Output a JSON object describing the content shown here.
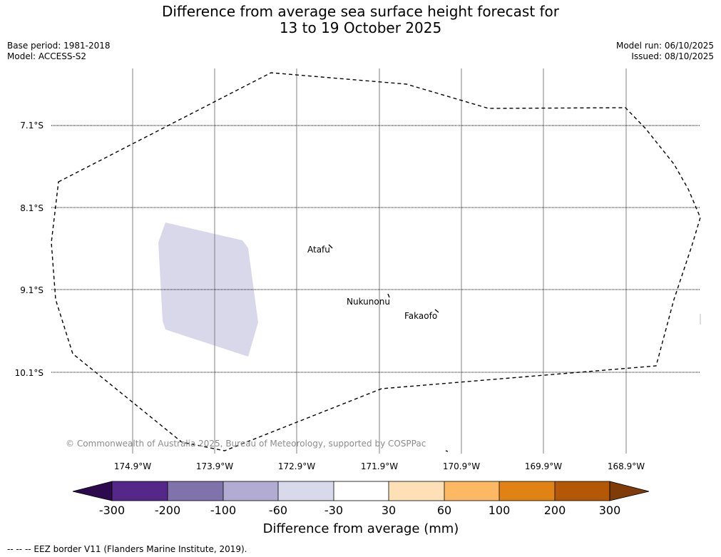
{
  "title": {
    "line1": "Difference from average sea surface height forecast for",
    "line2": "13 to 19 October 2025"
  },
  "meta": {
    "base_period": "Base period: 1981-2018",
    "model": "Model: ACCESS-S2",
    "model_run": "Model run: 06/10/2025",
    "issued": "Issued: 08/10/2025"
  },
  "map": {
    "longitude_labels": [
      "174.9°W",
      "173.9°W",
      "172.9°W",
      "171.9°W",
      "170.9°W",
      "169.9°W",
      "168.9°W"
    ],
    "latitude_labels": [
      "7.1°S",
      "8.1°S",
      "9.1°S",
      "10.1°S"
    ],
    "places": [
      {
        "name": "Atafu"
      },
      {
        "name": "Nukunonu"
      },
      {
        "name": "Fakaofo"
      }
    ],
    "anomaly_region": {
      "category": "-60 to -30",
      "color": "#d8d8ea"
    },
    "copyright": "© Commonwealth of Australia 2025, Bureau of Meteorology, supported by COSPPac"
  },
  "colorbar": {
    "title": "Difference from average (mm)",
    "ticks": [
      "-300",
      "-200",
      "-100",
      "-60",
      "-30",
      "30",
      "60",
      "100",
      "200",
      "300"
    ],
    "colors": {
      "under": "#2d0a4e",
      "bins": [
        "#542788",
        "#8073ac",
        "#b2abd2",
        "#d8daeb",
        "#ffffff",
        "#fee0b6",
        "#fdb863",
        "#e08214",
        "#b35806"
      ],
      "over": "#7f3b08"
    }
  },
  "footer": {
    "legend": "--  --  -- EEZ border V11 (Flanders Marine Institute, 2019)."
  }
}
